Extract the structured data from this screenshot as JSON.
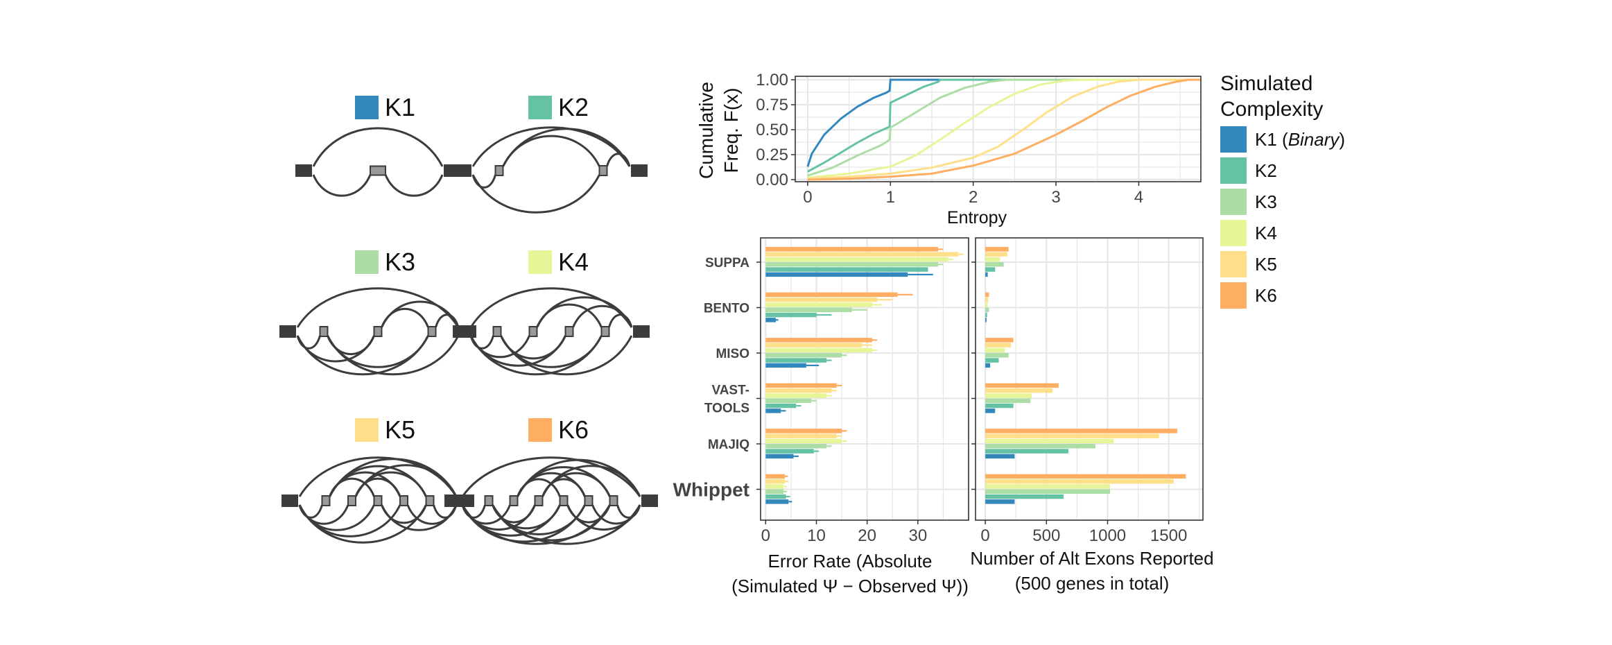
{
  "colors": {
    "K1": "#3288bd",
    "K2": "#66c2a5",
    "K3": "#abdda4",
    "K4": "#e6f598",
    "K5": "#fee08b",
    "K6": "#fdae61",
    "graph": "#3c3c3c",
    "internal_exon": "#9a9a9a"
  },
  "legend": {
    "title_line1": "Simulated",
    "title_line2": "Complexity",
    "items": [
      {
        "key": "K1",
        "label": "K1 (",
        "italic": "Binary",
        "tail": ")"
      },
      {
        "key": "K2",
        "label": "K2",
        "italic": "",
        "tail": ""
      },
      {
        "key": "K3",
        "label": "K3",
        "italic": "",
        "tail": ""
      },
      {
        "key": "K4",
        "label": "K4",
        "italic": "",
        "tail": ""
      },
      {
        "key": "K5",
        "label": "K5",
        "italic": "",
        "tail": ""
      },
      {
        "key": "K6",
        "label": "K6",
        "italic": "",
        "tail": ""
      }
    ]
  },
  "diagrams": [
    {
      "key": "K1",
      "label": "K1",
      "internal_exons": 1
    },
    {
      "key": "K2",
      "label": "K2",
      "internal_exons": 2
    },
    {
      "key": "K3",
      "label": "K3",
      "internal_exons": 3
    },
    {
      "key": "K4",
      "label": "K4",
      "internal_exons": 4
    },
    {
      "key": "K5",
      "label": "K5",
      "internal_exons": 5
    },
    {
      "key": "K6",
      "label": "K6",
      "internal_exons": 6
    }
  ],
  "chart_data": [
    {
      "type": "line",
      "title": "",
      "xlabel": "Entropy",
      "ylabel_line1": "Cumulative",
      "ylabel_line2": "Freq. F(x)",
      "xlim": [
        -0.15,
        4.75
      ],
      "ylim": [
        0,
        1
      ],
      "xticks": [
        "0",
        "1",
        "2",
        "3",
        "4"
      ],
      "yticks": [
        "0.00",
        "0.25",
        "0.50",
        "0.75",
        "1.00"
      ],
      "grid": true,
      "series": [
        {
          "name": "K1",
          "x": [
            0,
            0.05,
            0.2,
            0.4,
            0.6,
            0.8,
            0.95,
            0.99,
            1.0,
            4.75
          ],
          "y": [
            0.13,
            0.26,
            0.45,
            0.61,
            0.73,
            0.82,
            0.87,
            0.89,
            1.0,
            1.0
          ]
        },
        {
          "name": "K2",
          "x": [
            0,
            0.2,
            0.4,
            0.6,
            0.8,
            0.99,
            1.0,
            1.2,
            1.4,
            1.58,
            1.6,
            4.75
          ],
          "y": [
            0.08,
            0.17,
            0.27,
            0.37,
            0.46,
            0.53,
            0.77,
            0.85,
            0.93,
            0.98,
            1.0,
            1.0
          ]
        },
        {
          "name": "K3",
          "x": [
            0,
            0.3,
            0.6,
            0.9,
            0.99,
            1.0,
            1.3,
            1.6,
            1.9,
            2.2,
            2.4,
            4.75
          ],
          "y": [
            0.04,
            0.12,
            0.24,
            0.35,
            0.4,
            0.52,
            0.67,
            0.82,
            0.92,
            0.98,
            1.0,
            1.0
          ]
        },
        {
          "name": "K4",
          "x": [
            0,
            0.5,
            1.0,
            1.3,
            1.6,
            1.9,
            2.2,
            2.5,
            2.8,
            3.1,
            3.3,
            4.75
          ],
          "y": [
            0.02,
            0.06,
            0.13,
            0.24,
            0.4,
            0.57,
            0.73,
            0.86,
            0.95,
            0.99,
            1.0,
            1.0
          ]
        },
        {
          "name": "K5",
          "x": [
            0,
            0.5,
            1.0,
            1.5,
            2.0,
            2.3,
            2.6,
            2.9,
            3.2,
            3.5,
            3.75,
            4.0,
            4.75
          ],
          "y": [
            0.01,
            0.03,
            0.06,
            0.12,
            0.22,
            0.33,
            0.5,
            0.68,
            0.83,
            0.93,
            0.98,
            1.0,
            1.0
          ]
        },
        {
          "name": "K6",
          "x": [
            0,
            0.5,
            1.0,
            1.5,
            2.0,
            2.5,
            3.0,
            3.3,
            3.6,
            3.9,
            4.2,
            4.45,
            4.6,
            4.75
          ],
          "y": [
            0.0,
            0.01,
            0.03,
            0.06,
            0.14,
            0.26,
            0.45,
            0.58,
            0.72,
            0.84,
            0.93,
            0.98,
            1.0,
            1.0
          ]
        }
      ]
    },
    {
      "type": "bar",
      "orientation": "horizontal",
      "xlabel_line1": "Error Rate (Absolute",
      "xlabel_line2": "(Simulated Ψ − Observed Ψ))",
      "xlim": [
        -1,
        40
      ],
      "xticks": [
        "0",
        "10",
        "20",
        "30"
      ],
      "grid": true,
      "categories": [
        "SUPPA",
        "BENTO",
        "MISO",
        "VAST-\nTOOLS",
        "MAJIQ",
        "Whippet"
      ],
      "series": [
        {
          "name": "K1",
          "values": [
            28,
            2,
            8,
            3,
            5.5,
            4.5
          ],
          "upper": [
            33,
            2.5,
            10.5,
            4,
            6.5,
            5.2
          ]
        },
        {
          "name": "K2",
          "values": [
            32,
            10,
            12,
            6,
            9.5,
            4
          ],
          "upper": [
            31,
            13,
            13,
            7,
            10.5,
            4.8
          ]
        },
        {
          "name": "K3",
          "values": [
            34,
            17,
            15,
            9,
            12,
            3.5
          ],
          "upper": [
            35,
            20,
            16,
            10,
            13,
            4.2
          ]
        },
        {
          "name": "K4",
          "values": [
            36,
            21,
            21,
            12,
            15,
            3.5
          ],
          "upper": [
            37,
            23,
            22,
            13,
            16,
            4.2
          ]
        },
        {
          "name": "K5",
          "values": [
            38,
            22,
            19,
            13,
            14,
            3.8
          ],
          "upper": [
            39,
            25,
            21,
            14,
            15,
            4.5
          ]
        },
        {
          "name": "K6",
          "values": [
            34,
            26,
            21,
            14,
            15,
            3.8
          ],
          "upper": [
            35,
            29,
            22,
            15,
            16,
            4.4
          ]
        }
      ]
    },
    {
      "type": "bar",
      "orientation": "horizontal",
      "xlabel_line1": "Number of Alt Exons Reported",
      "xlabel_line2": "(500 genes in total)",
      "xlim": [
        -80,
        1780
      ],
      "xticks": [
        "0",
        "500",
        "1000",
        "1500"
      ],
      "grid": true,
      "categories": [
        "SUPPA",
        "BENTO",
        "MISO",
        "VAST-\nTOOLS",
        "MAJIQ",
        "Whippet"
      ],
      "series": [
        {
          "name": "K1",
          "values": [
            20,
            10,
            40,
            80,
            240,
            240
          ]
        },
        {
          "name": "K2",
          "values": [
            80,
            15,
            110,
            230,
            680,
            640
          ]
        },
        {
          "name": "K3",
          "values": [
            150,
            30,
            190,
            370,
            900,
            1020
          ]
        },
        {
          "name": "K4",
          "values": [
            120,
            20,
            160,
            380,
            1050,
            1020
          ]
        },
        {
          "name": "K5",
          "values": [
            180,
            25,
            210,
            550,
            1420,
            1540
          ]
        },
        {
          "name": "K6",
          "values": [
            190,
            30,
            230,
            600,
            1570,
            1640
          ]
        }
      ]
    }
  ]
}
